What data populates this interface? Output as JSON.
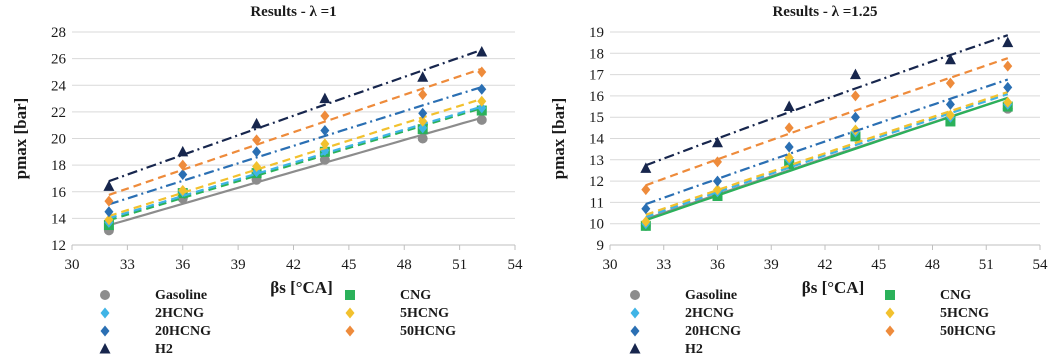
{
  "chart_data": [
    {
      "type": "scatter",
      "title": "Results - λ =1",
      "xlabel": "βs [°CA]",
      "ylabel": "pmax [bar]",
      "xlim": [
        30,
        54
      ],
      "ylim": [
        12,
        28
      ],
      "xticks": [
        30,
        33,
        36,
        39,
        42,
        45,
        48,
        51,
        54
      ],
      "yticks": [
        12,
        14,
        16,
        18,
        20,
        22,
        24,
        26,
        28
      ],
      "grid": true,
      "legend_position": "bottom",
      "x": [
        32,
        36,
        40,
        43.7,
        49,
        52.2
      ],
      "series": [
        {
          "name": "Gasoline",
          "marker": "circle",
          "color": "#8c8c8c",
          "line": "solid",
          "values": [
            13.1,
            15.5,
            16.9,
            18.4,
            20.0,
            21.4
          ]
        },
        {
          "name": "CNG",
          "marker": "square",
          "color": "#2bb15a",
          "line": "dashed",
          "values": [
            13.5,
            15.9,
            17.4,
            19.0,
            20.7,
            22.1
          ]
        },
        {
          "name": "2HCNG",
          "marker": "diamond",
          "color": "#3fb4e6",
          "line": "dashed",
          "values": [
            13.7,
            16.0,
            17.5,
            19.1,
            20.8,
            22.3
          ]
        },
        {
          "name": "5HCNG",
          "marker": "diamond",
          "color": "#f2c12e",
          "line": "dashed",
          "values": [
            13.9,
            16.1,
            17.9,
            19.6,
            21.3,
            22.8
          ]
        },
        {
          "name": "20HCNG",
          "marker": "diamond",
          "color": "#2a6fb3",
          "line": "dashdot",
          "values": [
            14.5,
            17.3,
            19.0,
            20.6,
            21.9,
            23.7
          ]
        },
        {
          "name": "50HCNG",
          "marker": "diamond",
          "color": "#ee8b3b",
          "line": "dashed",
          "values": [
            15.3,
            18.0,
            19.9,
            21.7,
            23.3,
            25.0
          ]
        },
        {
          "name": "H2",
          "marker": "triangle",
          "color": "#17264d",
          "line": "dashdot",
          "values": [
            16.4,
            19.0,
            21.1,
            23.0,
            24.6,
            26.5
          ]
        }
      ]
    },
    {
      "type": "scatter",
      "title": "Results - λ =1.25",
      "xlabel": "βs [°CA]",
      "ylabel": "pmax [bar]",
      "xlim": [
        30,
        54
      ],
      "ylim": [
        9,
        19
      ],
      "xticks": [
        30,
        33,
        36,
        39,
        42,
        45,
        48,
        51,
        54
      ],
      "yticks": [
        9,
        10,
        11,
        12,
        13,
        14,
        15,
        16,
        17,
        18,
        19
      ],
      "grid": true,
      "legend_position": "bottom",
      "x": [
        32,
        36,
        40,
        43.7,
        49,
        52.2
      ],
      "series": [
        {
          "name": "Gasoline",
          "marker": "circle",
          "color": "#8c8c8c",
          "line": "solid",
          "values": [
            9.9,
            11.4,
            12.9,
            14.1,
            14.9,
            15.4
          ]
        },
        {
          "name": "CNG",
          "marker": "square",
          "color": "#2bb15a",
          "line": "solid",
          "values": [
            9.9,
            11.3,
            12.8,
            14.1,
            14.8,
            15.5
          ]
        },
        {
          "name": "2HCNG",
          "marker": "diamond",
          "color": "#3fb4e6",
          "line": "dashed",
          "values": [
            10.0,
            11.5,
            13.0,
            14.3,
            15.0,
            15.6
          ]
        },
        {
          "name": "5HCNG",
          "marker": "diamond",
          "color": "#f2c12e",
          "line": "dashed",
          "values": [
            10.1,
            11.6,
            13.1,
            14.4,
            15.1,
            15.7
          ]
        },
        {
          "name": "20HCNG",
          "marker": "diamond",
          "color": "#2a6fb3",
          "line": "dashdot",
          "values": [
            10.7,
            12.0,
            13.6,
            15.0,
            15.6,
            16.4
          ]
        },
        {
          "name": "50HCNG",
          "marker": "diamond",
          "color": "#ee8b3b",
          "line": "dashed",
          "values": [
            11.6,
            12.9,
            14.5,
            16.0,
            16.6,
            17.4
          ]
        },
        {
          "name": "H2",
          "marker": "triangle",
          "color": "#17264d",
          "line": "dashdot",
          "values": [
            12.6,
            13.8,
            15.5,
            17.0,
            17.7,
            18.5
          ]
        }
      ]
    }
  ]
}
